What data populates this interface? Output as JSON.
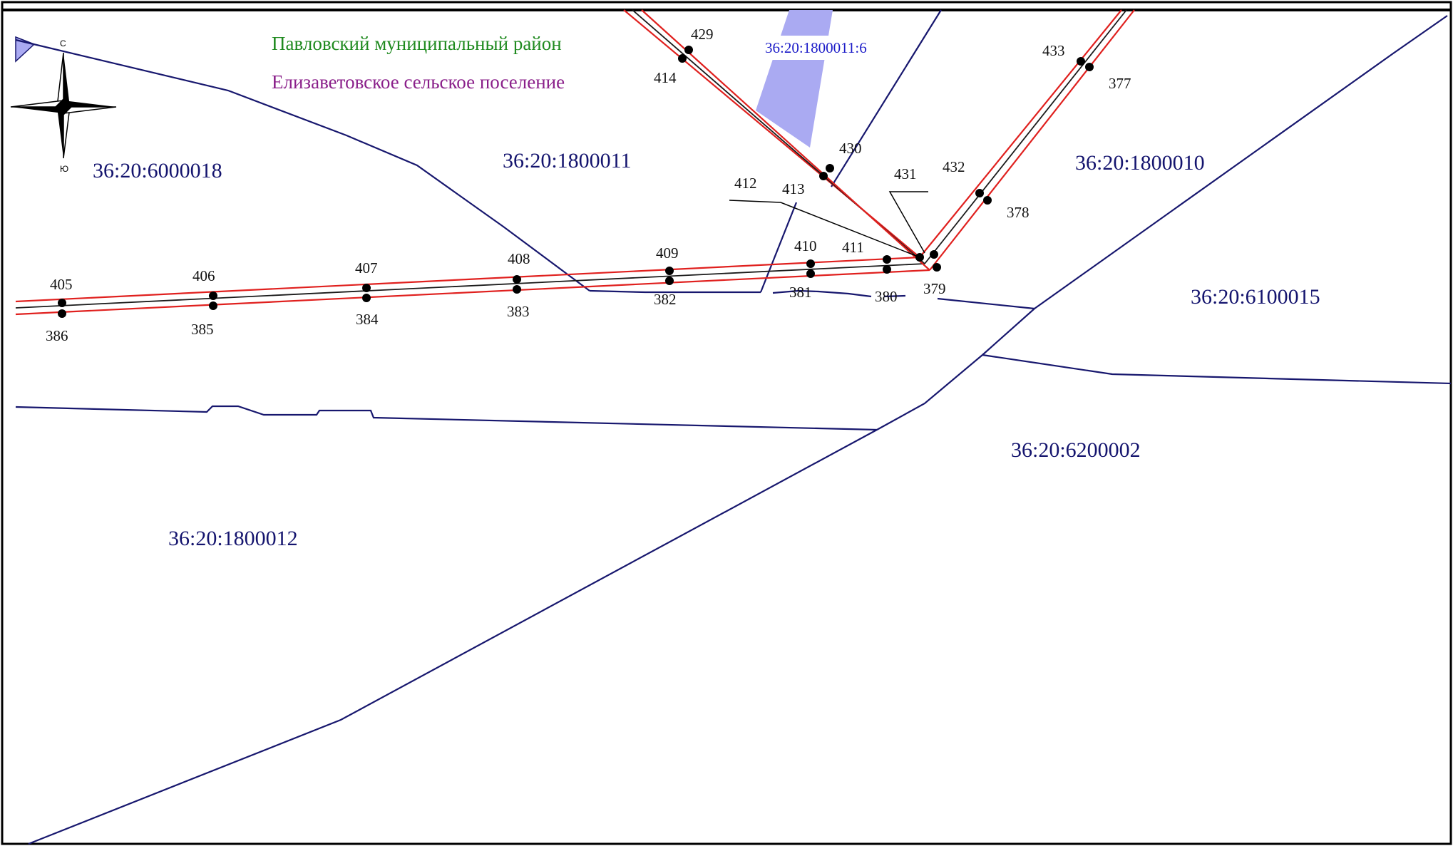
{
  "map": {
    "district_label": "Павловский муниципальный район",
    "settlement_label": "Елизаветовское сельское поселение",
    "compass": {
      "north_letter": "С",
      "south_letter": "Ю"
    },
    "colors": {
      "boundary": "#17176e",
      "route_red": "#e0201e",
      "subparcel_fill": "#aaaaf2",
      "district_text": "#1f8a1f",
      "settlement_text": "#8a1f8a"
    },
    "parcels": [
      {
        "id": "p-6000018",
        "label": "36:20:6000018"
      },
      {
        "id": "p-1800011",
        "label": "36:20:1800011"
      },
      {
        "id": "p-1800010",
        "label": "36:20:1800010"
      },
      {
        "id": "p-6100015",
        "label": "36:20:6100015"
      },
      {
        "id": "p-6200002",
        "label": "36:20:6200002"
      },
      {
        "id": "p-1800012",
        "label": "36:20:1800012"
      }
    ],
    "subparcel": {
      "label": "36:20:1800011:6"
    },
    "points": [
      "405",
      "386",
      "406",
      "385",
      "407",
      "384",
      "408",
      "383",
      "409",
      "382",
      "410",
      "381",
      "411",
      "380",
      "412",
      "413",
      "431",
      "379",
      "429",
      "414",
      "430",
      "433",
      "377",
      "432",
      "378"
    ]
  }
}
